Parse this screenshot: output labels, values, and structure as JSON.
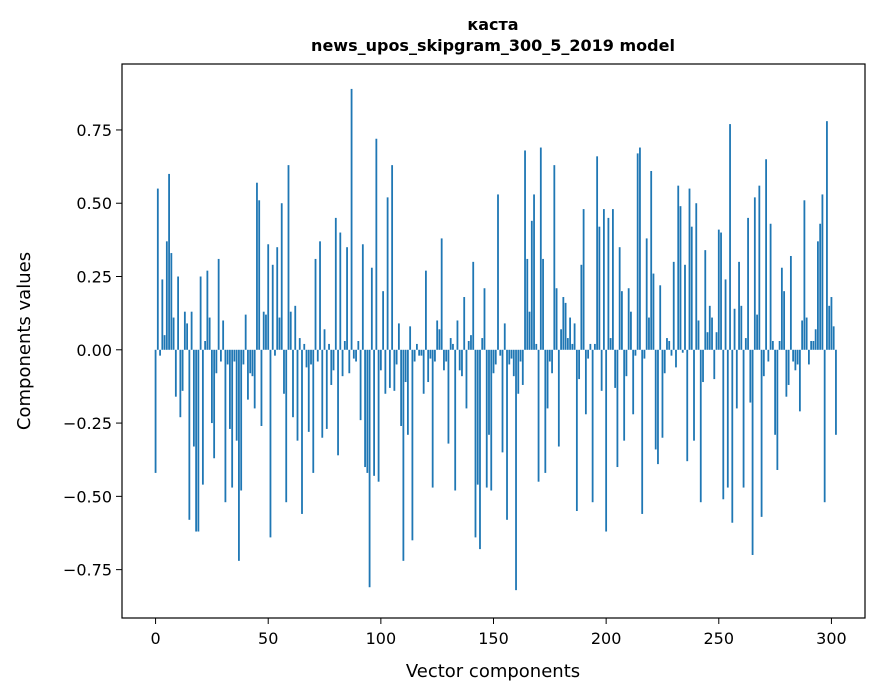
{
  "chart_data": {
    "type": "bar",
    "title": "каста",
    "subtitle": "news_upos_skipgram_300_5_2019 model",
    "xlabel": "Vector components",
    "ylabel": "Components values",
    "xlim": [
      -14.9,
      314.9
    ],
    "ylim": [
      -0.915,
      0.975
    ],
    "x_ticks": [
      0,
      50,
      100,
      150,
      200,
      250,
      300
    ],
    "x_tick_labels": [
      "0",
      "50",
      "100",
      "150",
      "200",
      "250",
      "300"
    ],
    "y_ticks": [
      -0.75,
      -0.5,
      -0.25,
      0.0,
      0.25,
      0.5,
      0.75
    ],
    "y_tick_labels": [
      "−0.75",
      "−0.50",
      "−0.25",
      "0.00",
      "0.25",
      "0.50",
      "0.75"
    ],
    "bar_color": "#1f77b4",
    "grid": false,
    "values": [
      -0.42,
      0.55,
      -0.02,
      0.24,
      0.05,
      0.37,
      0.6,
      0.33,
      0.11,
      -0.16,
      0.25,
      -0.23,
      -0.14,
      0.13,
      0.09,
      -0.58,
      0.13,
      -0.33,
      -0.62,
      -0.62,
      0.25,
      -0.46,
      0.03,
      0.27,
      0.11,
      -0.25,
      -0.37,
      -0.08,
      0.31,
      -0.04,
      0.1,
      -0.52,
      -0.05,
      -0.27,
      -0.47,
      -0.04,
      -0.31,
      -0.72,
      -0.48,
      -0.05,
      0.12,
      -0.17,
      -0.08,
      -0.09,
      -0.2,
      0.57,
      0.51,
      -0.26,
      0.13,
      0.12,
      0.36,
      -0.64,
      0.29,
      -0.02,
      0.35,
      0.11,
      0.5,
      -0.15,
      -0.52,
      0.63,
      0.13,
      -0.23,
      0.15,
      -0.31,
      0.04,
      -0.56,
      0.02,
      -0.06,
      -0.28,
      -0.05,
      -0.42,
      0.31,
      -0.04,
      0.37,
      -0.3,
      0.07,
      -0.27,
      0.02,
      -0.12,
      -0.07,
      0.45,
      -0.36,
      0.4,
      -0.09,
      0.03,
      0.35,
      -0.08,
      0.89,
      -0.03,
      -0.04,
      0.03,
      -0.24,
      0.36,
      -0.4,
      -0.42,
      -0.81,
      0.28,
      -0.43,
      0.72,
      -0.45,
      -0.07,
      0.2,
      -0.15,
      0.52,
      -0.13,
      0.63,
      -0.14,
      -0.05,
      0.09,
      -0.26,
      -0.72,
      -0.11,
      -0.29,
      0.08,
      -0.65,
      -0.04,
      0.02,
      -0.02,
      -0.02,
      -0.15,
      0.27,
      -0.11,
      -0.03,
      -0.47,
      -0.04,
      0.1,
      0.07,
      0.38,
      -0.07,
      -0.04,
      -0.32,
      0.04,
      0.02,
      -0.48,
      0.1,
      -0.07,
      -0.09,
      0.18,
      -0.2,
      0.03,
      0.05,
      0.3,
      -0.64,
      -0.46,
      -0.68,
      0.04,
      0.21,
      -0.47,
      -0.29,
      -0.48,
      -0.08,
      -0.05,
      0.53,
      -0.02,
      -0.35,
      0.09,
      -0.58,
      -0.05,
      -0.03,
      -0.09,
      -0.82,
      -0.15,
      -0.04,
      -0.12,
      0.68,
      0.31,
      0.13,
      0.44,
      0.53,
      0.02,
      -0.45,
      0.69,
      0.31,
      -0.42,
      -0.2,
      -0.04,
      -0.08,
      0.63,
      0.21,
      -0.33,
      0.07,
      0.18,
      0.16,
      0.04,
      0.11,
      0.02,
      0.09,
      -0.55,
      -0.1,
      0.29,
      0.48,
      -0.22,
      -0.03,
      0.02,
      -0.52,
      0.02,
      0.66,
      0.42,
      -0.14,
      0.48,
      -0.62,
      0.45,
      0.04,
      0.48,
      -0.13,
      -0.4,
      0.35,
      0.2,
      -0.31,
      -0.09,
      0.21,
      0.13,
      -0.22,
      -0.02,
      0.67,
      0.69,
      -0.56,
      -0.03,
      0.38,
      0.11,
      0.61,
      0.26,
      -0.34,
      -0.39,
      0.22,
      -0.3,
      -0.08,
      0.04,
      0.03,
      -0.02,
      0.3,
      -0.06,
      0.56,
      0.49,
      -0.01,
      0.29,
      -0.38,
      0.55,
      0.42,
      -0.31,
      0.5,
      0.1,
      -0.52,
      -0.11,
      0.34,
      0.06,
      0.15,
      0.11,
      -0.1,
      0.06,
      0.41,
      0.4,
      -0.51,
      0.24,
      -0.47,
      0.77,
      -0.59,
      0.14,
      -0.2,
      0.3,
      0.15,
      -0.47,
      0.04,
      0.45,
      -0.18,
      -0.7,
      0.52,
      0.12,
      0.56,
      -0.57,
      -0.09,
      0.65,
      -0.04,
      0.43,
      0.03,
      -0.29,
      -0.41,
      0.03,
      0.28,
      0.2,
      -0.16,
      -0.12,
      0.32,
      -0.04,
      -0.07,
      -0.05,
      -0.21,
      0.1,
      0.51,
      0.11,
      -0.05,
      0.03,
      0.03,
      0.07,
      0.37,
      0.43,
      0.53,
      -0.52,
      0.78,
      0.15,
      0.18,
      0.08,
      -0.29
    ]
  }
}
